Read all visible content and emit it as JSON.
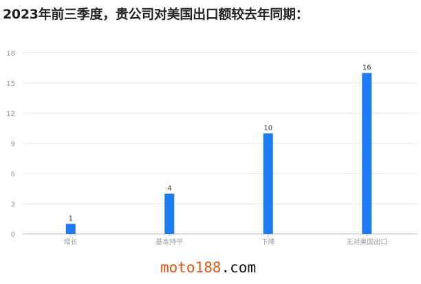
{
  "title": "2023年前三季度，贵公司对美国出口额较去年同期：",
  "chart_data": {
    "type": "bar",
    "title": "2023年前三季度，贵公司对美国出口额较去年同期：",
    "categories": [
      "增长",
      "基本持平",
      "下降",
      "无对美国出口"
    ],
    "values": [
      1,
      4,
      10,
      16
    ],
    "ylim": [
      0,
      18
    ],
    "yticks": [
      0,
      3,
      6,
      9,
      12,
      15,
      18
    ],
    "grid": true,
    "bar_color": "#1e7cf2",
    "data_labels": true
  },
  "watermark": {
    "part1": "moto188",
    "part2": ".com"
  }
}
